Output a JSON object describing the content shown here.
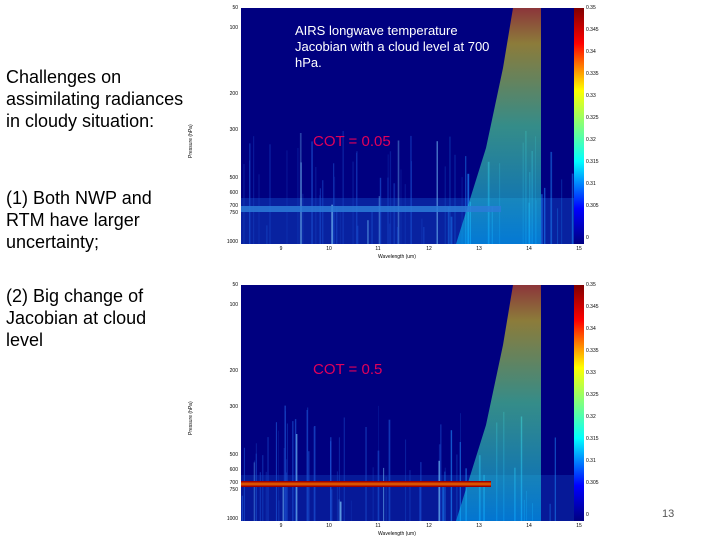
{
  "left_text": {
    "intro": "Challenges on\nassimilating radiances\nin cloudy situation:",
    "point1": "(1) Both NWP and\nRTM have larger\nuncertainty;",
    "point2": "(2) Big change of\nJacobian at cloud\nlevel"
  },
  "plot_title": "AIRS longwave temperature Jacobian with a cloud level at 700 hPa.",
  "page_number": "13",
  "colors": {
    "background": "#000080",
    "cloud_band": "#a00000"
  },
  "chart_data": [
    {
      "type": "heatmap",
      "annotation": "COT = 0.05",
      "xlabel": "Wavelength (um)",
      "ylabel": "Pressure (hPa)",
      "x_ticks": [
        "9",
        "10",
        "11",
        "12",
        "13",
        "14",
        "15"
      ],
      "y_ticks": [
        "50",
        "100",
        "200",
        "300",
        "500",
        "600",
        "700",
        "750",
        "1000"
      ],
      "colorbar_ticks": [
        "0.35",
        "0.345",
        "0.34",
        "0.335",
        "0.33",
        "0.325",
        "0.32",
        "0.315",
        "0.31",
        "0.305",
        "0"
      ],
      "cloud_level_hPa": 700
    },
    {
      "type": "heatmap",
      "annotation": "COT = 0.5",
      "xlabel": "Wavelength (um)",
      "ylabel": "Pressure (hPa)",
      "x_ticks": [
        "9",
        "10",
        "11",
        "12",
        "13",
        "14",
        "15"
      ],
      "y_ticks": [
        "50",
        "100",
        "200",
        "300",
        "500",
        "600",
        "700",
        "750",
        "1000"
      ],
      "colorbar_ticks": [
        "0.35",
        "0.345",
        "0.34",
        "0.335",
        "0.33",
        "0.325",
        "0.32",
        "0.315",
        "0.31",
        "0.305",
        "0"
      ],
      "cloud_level_hPa": 700
    }
  ]
}
